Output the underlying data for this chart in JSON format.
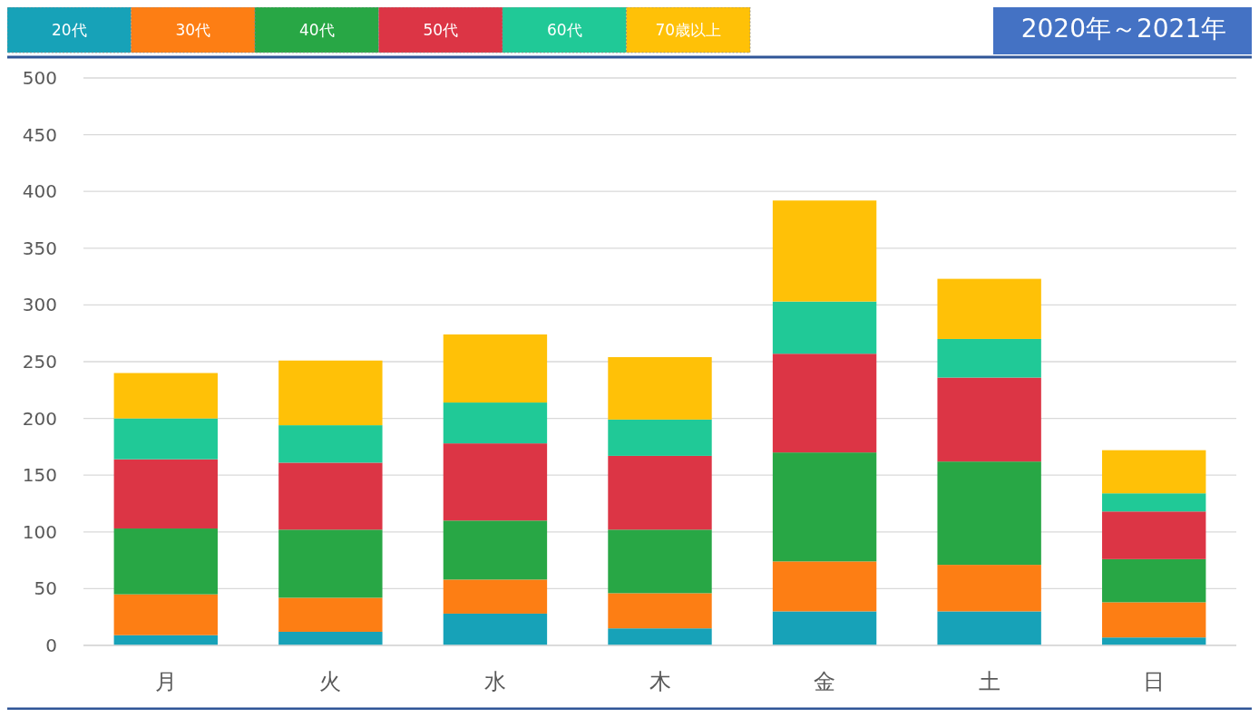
{
  "chart_data": {
    "type": "bar",
    "title": "2020年～2021年",
    "categories": [
      "月",
      "火",
      "水",
      "木",
      "金",
      "土",
      "日"
    ],
    "stacked": true,
    "legend": "top left",
    "grid": "y",
    "ylim": [
      0,
      500
    ],
    "yticks": [
      0,
      50,
      100,
      150,
      200,
      250,
      300,
      350,
      400,
      450,
      500
    ],
    "series": [
      {
        "name": "20代",
        "color": "#17a2b8",
        "values": [
          9,
          12,
          28,
          15,
          30,
          30,
          7
        ]
      },
      {
        "name": "30代",
        "color": "#fd7e14",
        "values": [
          36,
          30,
          30,
          31,
          44,
          41,
          31
        ]
      },
      {
        "name": "40代",
        "color": "#28a745",
        "values": [
          58,
          60,
          52,
          56,
          96,
          91,
          38
        ]
      },
      {
        "name": "50代",
        "color": "#dc3545",
        "values": [
          61,
          59,
          68,
          65,
          87,
          74,
          42
        ]
      },
      {
        "name": "60代",
        "color": "#20c997",
        "values": [
          36,
          33,
          36,
          32,
          46,
          34,
          16
        ]
      },
      {
        "name": "70歳以上",
        "color": "#ffc107",
        "values": [
          40,
          57,
          60,
          55,
          89,
          53,
          38
        ]
      }
    ]
  }
}
